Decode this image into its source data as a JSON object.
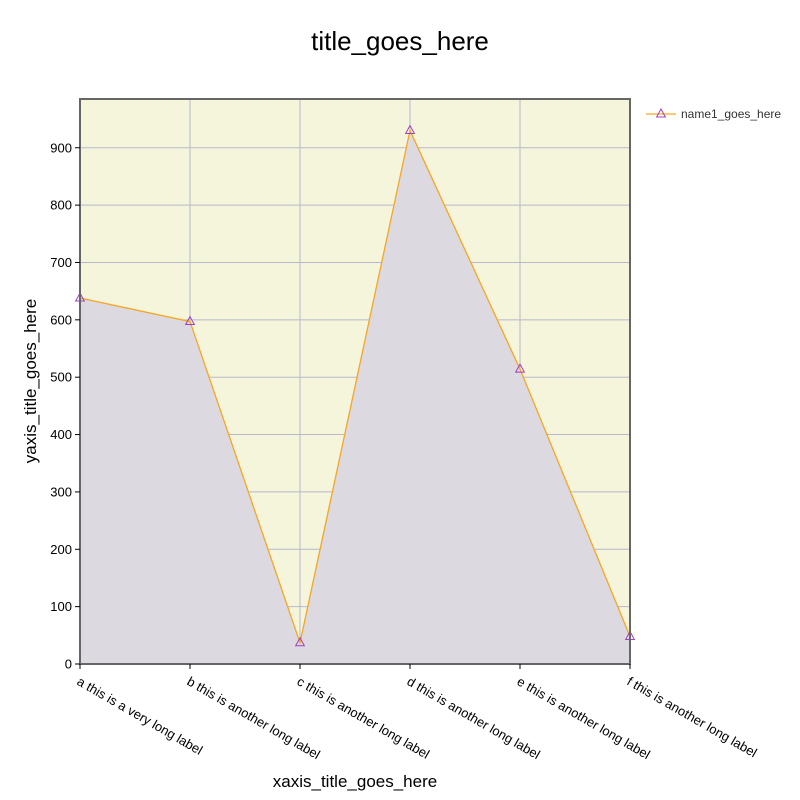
{
  "chart_data": {
    "type": "area",
    "title": "title_goes_here",
    "xlabel": "xaxis_title_goes_here",
    "ylabel": "yaxis_title_goes_here",
    "categories": [
      "a this is a very long label",
      "b this is another long label",
      "c this is another long label",
      "d this is another long label",
      "e this is another long label",
      "f this is another long label"
    ],
    "series": [
      {
        "name": "name1_goes_here",
        "values": [
          638,
          597,
          37,
          930,
          514,
          48
        ]
      }
    ],
    "ylim": [
      0,
      985
    ],
    "yticks": [
      0,
      100,
      200,
      300,
      400,
      500,
      600,
      700,
      800,
      900
    ],
    "grid": true,
    "legend_position": "top-right",
    "colors": {
      "plot_background": "#f5f5dc",
      "area_fill": "#dcdae0",
      "line": "#f5a623",
      "marker": "#a040c0",
      "grid": "#b8b8cc",
      "frame": "#666666"
    }
  }
}
